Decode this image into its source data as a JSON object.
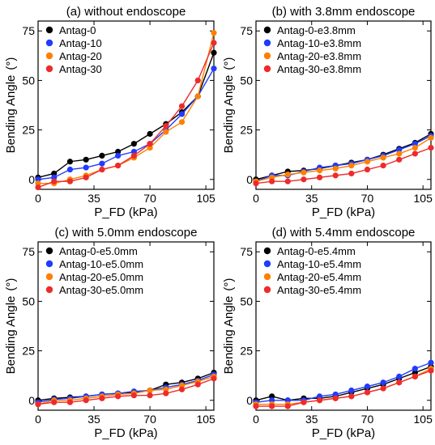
{
  "figure": {
    "colors": {
      "Antag-0": "#000000",
      "Antag-10": "#1f3cff",
      "Antag-20": "#ff8000",
      "Antag-30": "#ee2b2b"
    }
  },
  "chart_data": [
    {
      "type": "line",
      "title": "(a) without endoscope",
      "xlabel": "P_FD (kPa)",
      "ylabel": "Bending Angle",
      "ylabel_unit": "(°)",
      "xlim": [
        0,
        110
      ],
      "ylim": [
        -5,
        80
      ],
      "xticks": [
        "0",
        "35",
        "70",
        "105"
      ],
      "yticks": [
        "0",
        "25",
        "50",
        "75"
      ],
      "xtick_values": [
        0,
        35,
        70,
        105
      ],
      "ytick_values": [
        0,
        25,
        50,
        75
      ],
      "legend": "top-left",
      "x": [
        0,
        10,
        20,
        30,
        40,
        50,
        60,
        70,
        80,
        90,
        100,
        110
      ],
      "series": [
        {
          "name": "Antag-0",
          "color": "#000000",
          "values": [
            1,
            3,
            9,
            10,
            12,
            14,
            18,
            23,
            28,
            34,
            42,
            64
          ]
        },
        {
          "name": "Antag-10",
          "color": "#1f3cff",
          "values": [
            0,
            1,
            5,
            6,
            8,
            12,
            14,
            18,
            25,
            33,
            42,
            56
          ]
        },
        {
          "name": "Antag-20",
          "color": "#ff8000",
          "values": [
            -2,
            -2,
            0,
            2,
            5,
            7,
            11,
            16,
            24,
            29,
            42,
            74
          ]
        },
        {
          "name": "Antag-30",
          "color": "#ee2b2b",
          "values": [
            -4,
            -1,
            -1,
            1,
            5,
            7,
            12,
            18,
            27,
            37,
            50,
            69
          ]
        }
      ]
    },
    {
      "type": "line",
      "title": "(b) with 3.8mm endoscope",
      "xlabel": "P_FD (kPa)",
      "ylabel": "Bending Angle",
      "ylabel_unit": "(°)",
      "xlim": [
        0,
        110
      ],
      "ylim": [
        -5,
        80
      ],
      "xticks": [
        "0",
        "35",
        "70",
        "105"
      ],
      "yticks": [
        "0",
        "25",
        "50",
        "75"
      ],
      "xtick_values": [
        0,
        35,
        70,
        105
      ],
      "ytick_values": [
        0,
        25,
        50,
        75
      ],
      "legend": "top-left",
      "x": [
        0,
        10,
        20,
        30,
        40,
        50,
        60,
        70,
        80,
        90,
        100,
        110
      ],
      "series": [
        {
          "name": "Antag-0-e3.8mm",
          "color": "#000000",
          "values": [
            0,
            2,
            4,
            4.5,
            5.5,
            7,
            8.5,
            10,
            12.5,
            15.5,
            18.5,
            23
          ]
        },
        {
          "name": "Antag-10-e3.8mm",
          "color": "#1f3cff",
          "values": [
            -1,
            2,
            2,
            4,
            6,
            7,
            8,
            10,
            12,
            15,
            18,
            22
          ]
        },
        {
          "name": "Antag-20-e3.8mm",
          "color": "#ff8000",
          "values": [
            -1,
            1,
            2.5,
            3.5,
            4.5,
            5.5,
            7,
            9,
            11,
            13,
            16,
            21
          ]
        },
        {
          "name": "Antag-30-e3.8mm",
          "color": "#ee2b2b",
          "values": [
            -2,
            -1,
            -1,
            0,
            1,
            2,
            3,
            5,
            7,
            10,
            13,
            16
          ]
        }
      ]
    },
    {
      "type": "line",
      "title": "(c) with 5.0mm endoscope",
      "xlabel": "P_FD (kPa)",
      "ylabel": "Bending Angle",
      "ylabel_unit": "(°)",
      "xlim": [
        0,
        110
      ],
      "ylim": [
        -5,
        80
      ],
      "xticks": [
        "0",
        "35",
        "70",
        "105"
      ],
      "yticks": [
        "0",
        "25",
        "50",
        "75"
      ],
      "xtick_values": [
        0,
        35,
        70,
        105
      ],
      "ytick_values": [
        0,
        25,
        50,
        75
      ],
      "legend": "top-left",
      "x": [
        0,
        10,
        20,
        30,
        40,
        50,
        60,
        70,
        80,
        90,
        100,
        110
      ],
      "series": [
        {
          "name": "Antag-0-e5.0mm",
          "color": "#000000",
          "values": [
            0,
            1,
            1.5,
            2,
            3,
            3.5,
            4,
            5,
            8,
            9,
            11,
            14
          ]
        },
        {
          "name": "Antag-10-e5.0mm",
          "color": "#1f3cff",
          "values": [
            -1,
            0.5,
            1,
            2,
            3,
            3.5,
            4.5,
            5,
            6.5,
            8,
            10,
            13
          ]
        },
        {
          "name": "Antag-20-e5.0mm",
          "color": "#ff8000",
          "values": [
            -2,
            0,
            0,
            1,
            2,
            3,
            3.5,
            5,
            5.5,
            7.5,
            9.5,
            12
          ]
        },
        {
          "name": "Antag-30-e5.0mm",
          "color": "#ee2b2b",
          "values": [
            -2,
            -1,
            -1,
            0,
            1,
            2,
            2.5,
            2.5,
            3.5,
            5.5,
            8,
            11
          ]
        }
      ]
    },
    {
      "type": "line",
      "title": "(d) with 5.4mm endoscope",
      "xlabel": "P_FD (kPa)",
      "ylabel": "Bending Angle",
      "ylabel_unit": "(°)",
      "xlim": [
        0,
        110
      ],
      "ylim": [
        -5,
        80
      ],
      "xticks": [
        "0",
        "35",
        "70",
        "105"
      ],
      "yticks": [
        "0",
        "25",
        "50",
        "75"
      ],
      "xtick_values": [
        0,
        35,
        70,
        105
      ],
      "ytick_values": [
        0,
        25,
        50,
        75
      ],
      "legend": "top-left",
      "x": [
        0,
        10,
        20,
        30,
        40,
        50,
        60,
        70,
        80,
        90,
        100,
        110
      ],
      "series": [
        {
          "name": "Antag-0-e5.4mm",
          "color": "#000000",
          "values": [
            0,
            2,
            0,
            1,
            1,
            2,
            4,
            6,
            8,
            11,
            14,
            17
          ]
        },
        {
          "name": "Antag-10-e5.4mm",
          "color": "#1f3cff",
          "values": [
            -1,
            0,
            0,
            0,
            2,
            3,
            5,
            7,
            9,
            12,
            16,
            19
          ]
        },
        {
          "name": "Antag-20-e5.4mm",
          "color": "#ff8000",
          "values": [
            -2,
            -2,
            -2,
            -1,
            0,
            1,
            2,
            4,
            6,
            9,
            12,
            16
          ]
        },
        {
          "name": "Antag-30-e5.4mm",
          "color": "#ee2b2b",
          "values": [
            -3,
            -3,
            -3,
            -1,
            0,
            1,
            2,
            4,
            6,
            9,
            12,
            15
          ]
        }
      ]
    }
  ]
}
